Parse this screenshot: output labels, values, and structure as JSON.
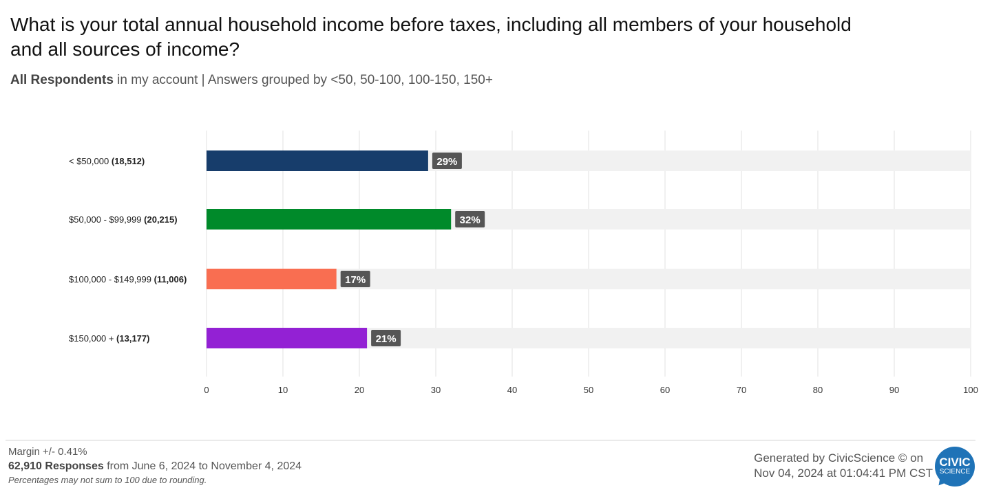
{
  "title": "What is your total annual household income before taxes, including all members of your household and all sources of income?",
  "subtitle": {
    "bold": "All Respondents",
    "rest": " in my account | Answers grouped by <50, 50-100, 100-150, 150+"
  },
  "chart_data": {
    "type": "bar",
    "orientation": "horizontal",
    "categories": [
      "< $50,000",
      "$50,000 - $99,999",
      "$100,000 - $149,999",
      "$150,000 +"
    ],
    "counts": [
      "18,512",
      "20,215",
      "11,006",
      "13,177"
    ],
    "values": [
      29,
      32,
      17,
      21
    ],
    "value_labels": [
      "29%",
      "32%",
      "17%",
      "21%"
    ],
    "colors": [
      "#173d6b",
      "#008a2a",
      "#f96e51",
      "#9321d4"
    ],
    "xlim": [
      0,
      100
    ],
    "xticks": [
      0,
      10,
      20,
      30,
      40,
      50,
      60,
      70,
      80,
      90,
      100
    ],
    "grid": true,
    "xlabel": "",
    "ylabel": ""
  },
  "footer": {
    "margin": "Margin +/- 0.41%",
    "responses_bold": "62,910 Responses",
    "responses_rest": " from June 6, 2024 to November 4, 2024",
    "note": "Percentages may not sum to 100 due to rounding.",
    "generated_line1": "Generated by CivicScience © on",
    "generated_line2": "Nov 04, 2024 at 01:04:41 PM CST"
  },
  "logo": {
    "line1": "CIVIC",
    "line2": "SCIENCE"
  }
}
